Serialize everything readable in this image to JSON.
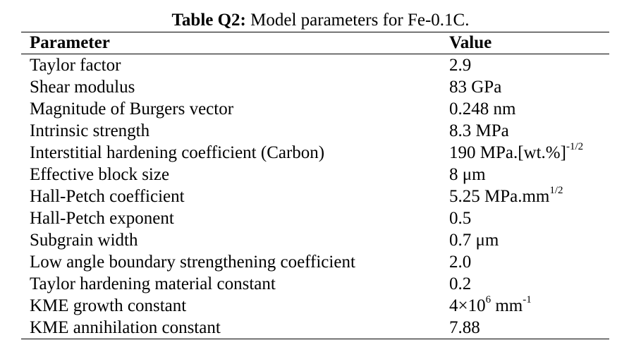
{
  "caption": {
    "lead": "Table Q2:",
    "text": " Model parameters for Fe-0.1C."
  },
  "headers": {
    "parameter": "Parameter",
    "value": "Value"
  },
  "rows": [
    {
      "parameter": "Taylor factor",
      "value": "2.9"
    },
    {
      "parameter": "Shear modulus",
      "value": "83 GPa"
    },
    {
      "parameter": "Magnitude of Burgers vector",
      "value": "0.248 nm"
    },
    {
      "parameter": "Intrinsic strength",
      "value": "8.3 MPa"
    },
    {
      "parameter": "Interstitial hardening coefficient (Carbon)",
      "value": "190 MPa.[wt.%]",
      "sup": "-1/2"
    },
    {
      "parameter": "Effective block size",
      "value": "8 μm"
    },
    {
      "parameter": "Hall-Petch coefficient",
      "value": "5.25 MPa.mm",
      "sup": "1/2"
    },
    {
      "parameter": "Hall-Petch exponent",
      "value": "0.5"
    },
    {
      "parameter": "Subgrain width",
      "value": "0.7 μm"
    },
    {
      "parameter": "Low angle boundary strengthening coefficient",
      "value": "2.0"
    },
    {
      "parameter": "Taylor hardening material constant",
      "value": "0.2"
    },
    {
      "parameter": "KME growth constant",
      "value": "4×10",
      "sup": "6",
      "suffix": " mm",
      "sup2": "-1"
    },
    {
      "parameter": "KME annihilation constant",
      "value": "7.88"
    }
  ]
}
